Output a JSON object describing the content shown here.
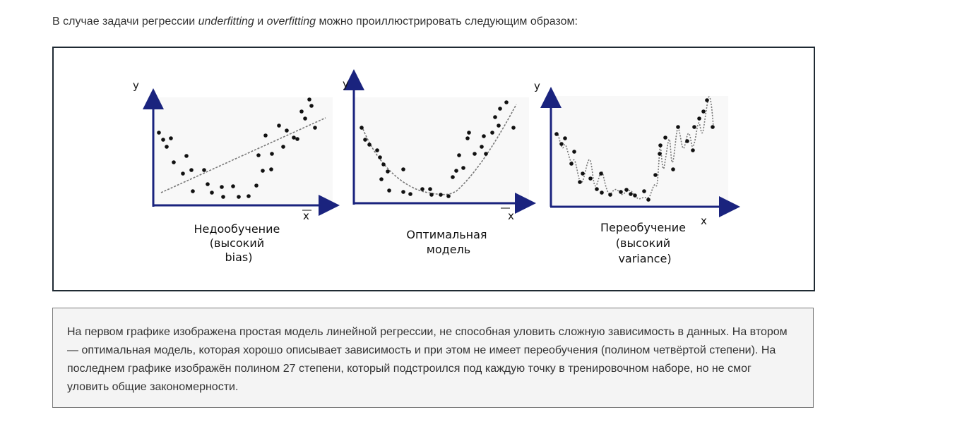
{
  "intro": {
    "before": "В случае задачи регрессии ",
    "term1": "underfitting",
    "middle": " и ",
    "term2": "overfitting",
    "after": " можно проиллюстрировать следующим образом:"
  },
  "figure": {
    "panels": [
      {
        "id": "underfit",
        "y_label": "y",
        "x_label": "x",
        "caption_lines": [
          "Недообучение",
          "(высокий",
          "bias)"
        ]
      },
      {
        "id": "optimal",
        "y_label": "y",
        "x_label": "x",
        "caption_lines": [
          "Оптимальная",
          "модель"
        ]
      },
      {
        "id": "overfit",
        "y_label": "y",
        "x_label": "x",
        "caption_lines": [
          "Переобучение",
          "(высокий",
          "variance)"
        ]
      }
    ],
    "colors": {
      "axis": "#1a237e",
      "points": "#111111",
      "fit_line": "#777777"
    }
  },
  "caption": {
    "text": "На первом графике изображена простая модель линейной регрессии, не способная уловить сложную зависимость в данных. На втором — оптимальная модель, которая хорошо описывает зависимость и при этом не имеет переобучения (полином четвёртой степени). На последнем графике изображён полином 27 степени, который подстроился под каждую точку в тренировочном наборе, но не смог уловить общие закономерности."
  }
}
